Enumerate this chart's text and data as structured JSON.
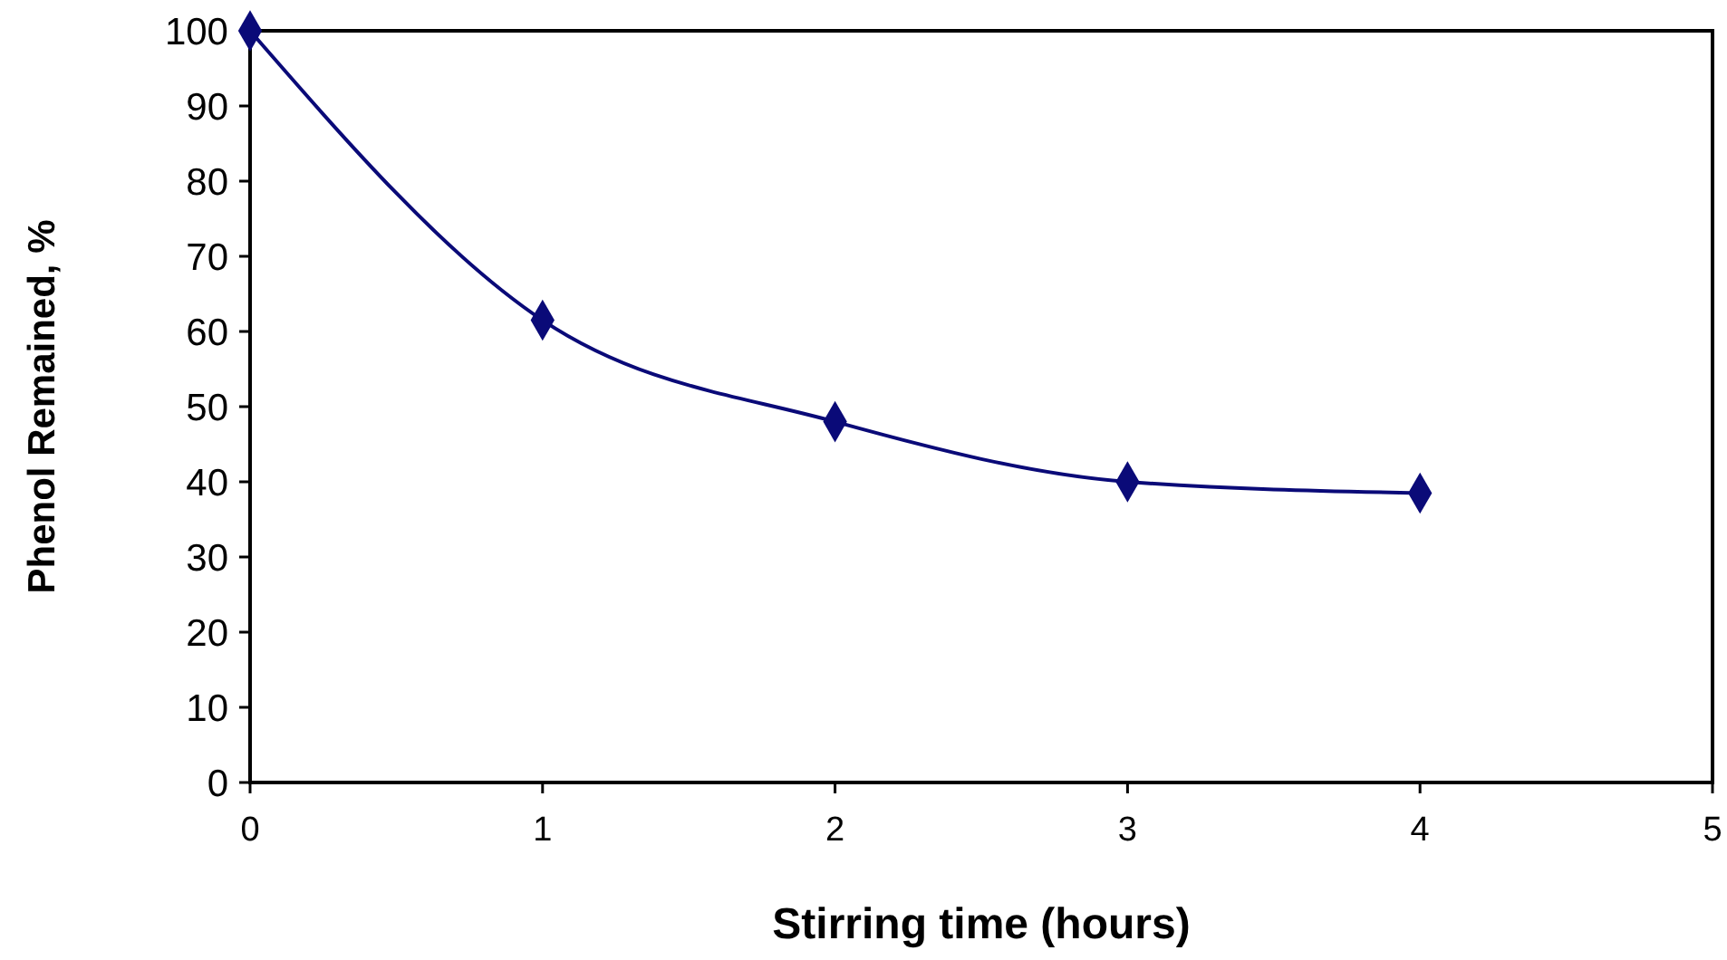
{
  "chart_data": {
    "type": "line",
    "xlabel": "Stirring time (hours)",
    "ylabel": "Phenol Remained, %",
    "x": [
      0,
      1,
      2,
      3,
      4
    ],
    "series": [
      {
        "color": "#0a0a78",
        "values": [
          100,
          61.5,
          48,
          40,
          38.5
        ]
      }
    ],
    "xlim": [
      0,
      5
    ],
    "xticks": [
      0,
      1,
      2,
      3,
      4,
      5
    ],
    "ylim": [
      0,
      100
    ],
    "yticks": [
      0,
      10,
      20,
      30,
      40,
      50,
      60,
      70,
      80,
      90,
      100
    ],
    "grid": false,
    "marker": "diamond",
    "line_style": "solid"
  }
}
